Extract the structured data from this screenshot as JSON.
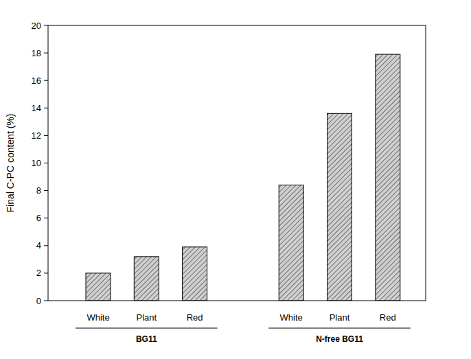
{
  "chart_data": {
    "type": "bar",
    "y_label": "Final C-PC content (%)",
    "categories": [
      "White",
      "Plant",
      "Red",
      "White",
      "Plant",
      "Red"
    ],
    "values": [
      2.0,
      3.2,
      3.9,
      8.4,
      13.6,
      17.9
    ],
    "group_labels": [
      "BG11",
      "N-free BG11"
    ],
    "color": "#d0d0d0",
    "ylim": [
      0,
      20
    ],
    "yticks": [
      0,
      2,
      4,
      6,
      8,
      10,
      12,
      14,
      16,
      18,
      20
    ],
    "grid": false
  }
}
